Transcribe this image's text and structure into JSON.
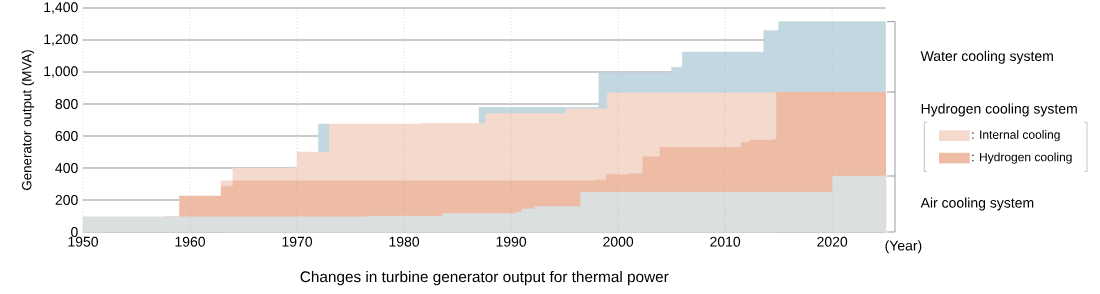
{
  "chart_data": {
    "type": "area",
    "title": "Changes in turbine generator output for thermal power",
    "xlabel": "(Year)",
    "ylabel": "Generator output  (MVA)",
    "xlim": [
      1950,
      2025
    ],
    "ylim": [
      0,
      1400
    ],
    "xticks": [
      1950,
      1960,
      1970,
      1980,
      1990,
      2000,
      2010,
      2020
    ],
    "yticks": [
      {
        "value": 0,
        "label": "0"
      },
      {
        "value": 200,
        "label": "200"
      },
      {
        "value": 400,
        "label": "400"
      },
      {
        "value": 600,
        "label": "600"
      },
      {
        "value": 800,
        "label": "800"
      },
      {
        "value": 1000,
        "label": "1,000"
      },
      {
        "value": 1200,
        "label": "1,200"
      },
      {
        "value": 1400,
        "label": "1,400"
      }
    ],
    "grid": true,
    "legend": "right",
    "legend_title": "Hydrogen cooling system",
    "annotations": [
      "Water cooling system",
      "Air cooling system"
    ],
    "series": [
      {
        "color": "#c3d7e1",
        "x": [
          1969,
          1970,
          1971,
          1972,
          1973,
          1980,
          1987,
          1998.2,
          1998.2,
          2005,
          2005,
          2006,
          2006,
          2013.6,
          2013.6,
          2015,
          2015,
          2025
        ],
        "values": [
          405,
          405,
          null,
          675,
          675,
          null,
          780,
          780,
          995,
          995,
          1030,
          1030,
          1125,
          1125,
          1260,
          1260,
          1315,
          1315
        ]
      },
      {
        "name": ": Internal cooling",
        "color": "#f4d9cd",
        "x": [
          1962.9,
          1964,
          1964,
          1970,
          1970,
          1973,
          1973,
          1981.6,
          1981.6,
          1987.6,
          1987.6,
          1995.1,
          1995.1,
          1999,
          1999,
          2014.8
        ],
        "values": [
          320,
          320,
          400,
          400,
          500,
          500,
          675,
          675,
          680,
          680,
          740,
          740,
          770,
          770,
          870,
          870
        ]
      },
      {
        "name": ": Hydrogen cooling",
        "color": "#eebca4",
        "x": [
          1957.7,
          1959,
          1959,
          1962.9,
          1962.9,
          1964,
          1964,
          1998,
          1998,
          1998.9,
          1998.9,
          2001,
          2001,
          2002.3,
          2002.3,
          2003.9,
          2003.9,
          2011.5,
          2011.5,
          2012.3,
          2012.3,
          2014.6,
          2014.6,
          2014.8,
          2014.8,
          2025
        ],
        "values": [
          95,
          95,
          225,
          225,
          285,
          285,
          320,
          320,
          325,
          325,
          360,
          360,
          365,
          365,
          470,
          470,
          530,
          530,
          560,
          560,
          575,
          575,
          580,
          580,
          875,
          875
        ]
      },
      {
        "color": "#dcdfe0",
        "x": [
          1950,
          1976.5,
          1976.5,
          1983.6,
          1983.6,
          1990.5,
          1990.5,
          1991,
          1991,
          1992.2,
          1992.2,
          1996.5,
          1996.5,
          2020,
          2020,
          2025
        ],
        "values": [
          95,
          95,
          100,
          100,
          115,
          115,
          125,
          125,
          145,
          145,
          160,
          160,
          250,
          250,
          350,
          350
        ]
      }
    ]
  }
}
